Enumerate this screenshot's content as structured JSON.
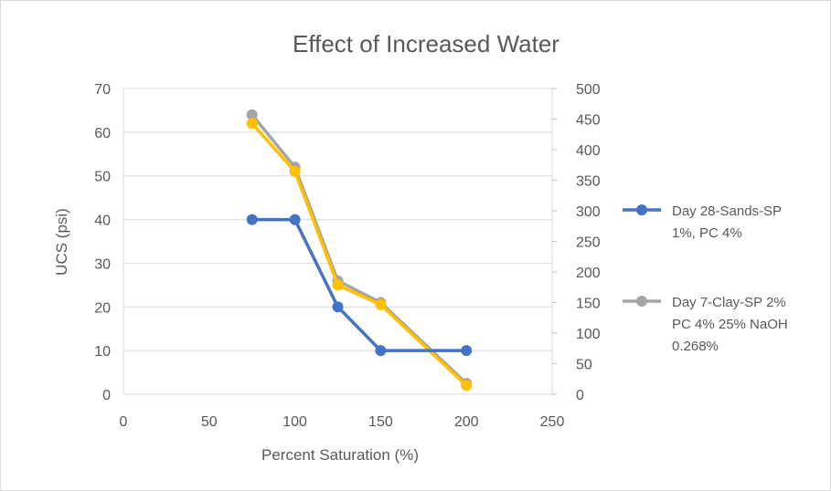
{
  "chart_data": {
    "type": "line",
    "title": "Effect of Increased Water",
    "xlabel": "Percent Saturation (%)",
    "ylabel": "UCS (psi)",
    "xlim": [
      0,
      250
    ],
    "ylim": [
      0,
      70
    ],
    "y2lim": [
      0,
      500
    ],
    "x_ticks": [
      "0",
      "50",
      "100",
      "150",
      "200",
      "250"
    ],
    "y_ticks": [
      "0",
      "10",
      "20",
      "30",
      "40",
      "50",
      "60",
      "70"
    ],
    "y2_ticks": [
      "0",
      "50",
      "100",
      "150",
      "200",
      "250",
      "300",
      "350",
      "400",
      "450",
      "500"
    ],
    "grid": true,
    "legend_position": "right",
    "series": [
      {
        "name_lines": [
          "Day 28-Sands-SP",
          "1%, PC 4%"
        ],
        "color": "#4472c4",
        "axis": "left",
        "x": [
          75,
          100,
          125,
          150,
          200
        ],
        "y": [
          40,
          40,
          20,
          10,
          10
        ]
      },
      {
        "name_lines": [
          "Day 7-Clay-SP 2%",
          "PC 4% 25% NaOH",
          "0.268%"
        ],
        "color": "#a5a5a5",
        "axis": "left",
        "x": [
          75,
          100,
          125,
          150,
          200
        ],
        "y": [
          64,
          52,
          26,
          21,
          2.5
        ]
      },
      {
        "color": "#ffc000",
        "axis": "left",
        "x": [
          75,
          100,
          125,
          150,
          200
        ],
        "y": [
          62,
          51,
          25,
          20.5,
          2
        ]
      }
    ]
  }
}
